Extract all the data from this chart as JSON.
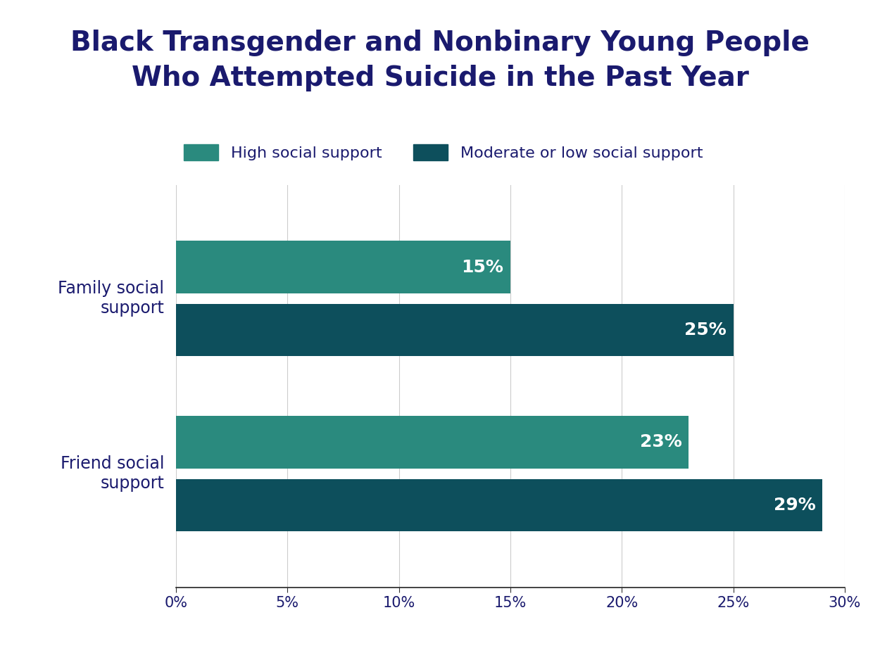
{
  "title": "Black Transgender and Nonbinary Young People\nWho Attempted Suicide in the Past Year",
  "title_color": "#1a1a6e",
  "title_fontsize": 28,
  "background_color": "#ffffff",
  "categories": [
    "Family social\nsupport",
    "Friend social\nsupport"
  ],
  "high_support_values": [
    15,
    23
  ],
  "low_support_values": [
    25,
    29
  ],
  "high_support_color": "#2a8a7e",
  "low_support_color": "#0d4f5c",
  "legend_labels": [
    "High social support",
    "Moderate or low social support"
  ],
  "xlim": [
    0,
    30
  ],
  "xtick_values": [
    0,
    5,
    10,
    15,
    20,
    25,
    30
  ],
  "xtick_labels": [
    "0%",
    "5%",
    "10%",
    "15%",
    "20%",
    "25%",
    "30%"
  ],
  "tick_fontsize": 15,
  "legend_fontsize": 16,
  "bar_label_fontsize": 18,
  "ytick_fontsize": 17,
  "ytick_color": "#1a1a6e",
  "xtick_color": "#1a1a6e"
}
